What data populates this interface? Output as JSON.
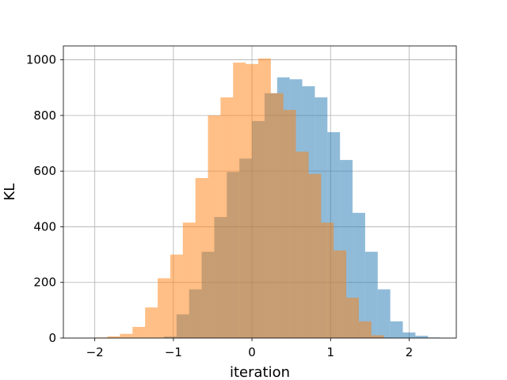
{
  "chart_data": {
    "type": "bar",
    "title": "",
    "xlabel": "iteration",
    "ylabel": "KL",
    "xlim": [
      -2.4,
      2.6
    ],
    "ylim": [
      0,
      1050
    ],
    "xticks": [
      -2,
      -1,
      0,
      1,
      2
    ],
    "xtick_labels": [
      "−2",
      "−1",
      "0",
      "1",
      "2"
    ],
    "yticks": [
      0,
      200,
      400,
      600,
      800,
      1000
    ],
    "ytick_labels": [
      "0",
      "200",
      "400",
      "600",
      "800",
      "1000"
    ],
    "grid": true,
    "legend": "none",
    "series": [
      {
        "color": "#1f77b4",
        "alpha": 0.5,
        "bins": [
          [
            -1.12,
            -0.96,
            5
          ],
          [
            -0.96,
            -0.8,
            85
          ],
          [
            -0.8,
            -0.64,
            175
          ],
          [
            -0.64,
            -0.48,
            310
          ],
          [
            -0.48,
            -0.32,
            435
          ],
          [
            -0.32,
            -0.16,
            597
          ],
          [
            -0.16,
            0.0,
            645
          ],
          [
            0.0,
            0.16,
            780
          ],
          [
            0.16,
            0.32,
            880
          ],
          [
            0.32,
            0.48,
            937
          ],
          [
            0.48,
            0.64,
            930
          ],
          [
            0.64,
            0.8,
            905
          ],
          [
            0.8,
            0.96,
            865
          ],
          [
            0.96,
            1.12,
            740
          ],
          [
            1.12,
            1.28,
            640
          ],
          [
            1.28,
            1.44,
            450
          ],
          [
            1.44,
            1.6,
            310
          ],
          [
            1.6,
            1.76,
            175
          ],
          [
            1.76,
            1.92,
            60
          ],
          [
            1.92,
            2.08,
            20
          ],
          [
            2.08,
            2.24,
            8
          ],
          [
            2.24,
            2.4,
            2
          ]
        ]
      },
      {
        "color": "#ff7f0e",
        "alpha": 0.5,
        "bins": [
          [
            -2.0,
            -1.84,
            2
          ],
          [
            -1.84,
            -1.68,
            6
          ],
          [
            -1.68,
            -1.52,
            15
          ],
          [
            -1.52,
            -1.36,
            40
          ],
          [
            -1.36,
            -1.2,
            110
          ],
          [
            -1.2,
            -1.04,
            215
          ],
          [
            -1.04,
            -0.88,
            300
          ],
          [
            -0.88,
            -0.72,
            415
          ],
          [
            -0.72,
            -0.56,
            575
          ],
          [
            -0.56,
            -0.4,
            800
          ],
          [
            -0.4,
            -0.24,
            865
          ],
          [
            -0.24,
            -0.08,
            990
          ],
          [
            -0.08,
            0.08,
            985
          ],
          [
            0.08,
            0.24,
            1005
          ],
          [
            0.24,
            0.4,
            880
          ],
          [
            0.4,
            0.56,
            820
          ],
          [
            0.56,
            0.72,
            670
          ],
          [
            0.72,
            0.88,
            590
          ],
          [
            0.88,
            1.04,
            415
          ],
          [
            1.04,
            1.2,
            315
          ],
          [
            1.2,
            1.36,
            145
          ],
          [
            1.36,
            1.52,
            60
          ],
          [
            1.52,
            1.68,
            10
          ]
        ]
      }
    ]
  }
}
